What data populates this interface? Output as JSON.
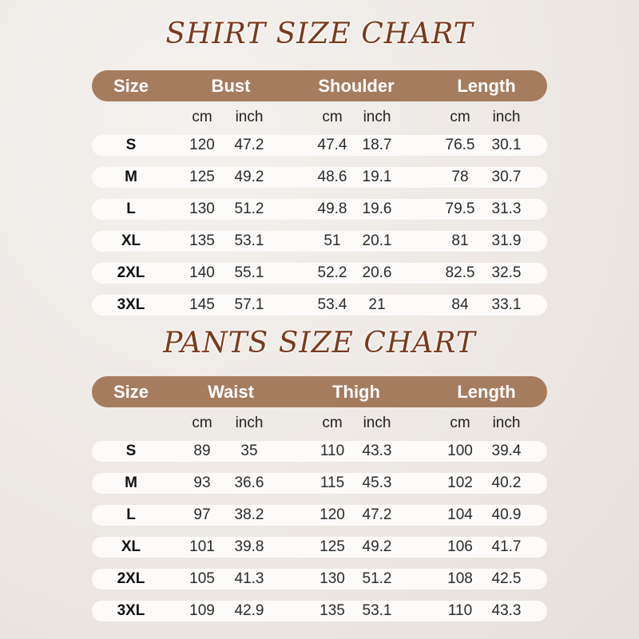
{
  "tables": [
    {
      "title": "SHIRT SIZE CHART",
      "headers": [
        "Size",
        "Bust",
        "Shoulder",
        "Length"
      ],
      "units": [
        "cm",
        "inch",
        "cm",
        "inch",
        "cm",
        "inch"
      ],
      "rows": [
        [
          "S",
          "120",
          "47.2",
          "47.4",
          "18.7",
          "76.5",
          "30.1"
        ],
        [
          "M",
          "125",
          "49.2",
          "48.6",
          "19.1",
          "78",
          "30.7"
        ],
        [
          "L",
          "130",
          "51.2",
          "49.8",
          "19.6",
          "79.5",
          "31.3"
        ],
        [
          "XL",
          "135",
          "53.1",
          "51",
          "20.1",
          "81",
          "31.9"
        ],
        [
          "2XL",
          "140",
          "55.1",
          "52.2",
          "20.6",
          "82.5",
          "32.5"
        ],
        [
          "3XL",
          "145",
          "57.1",
          "53.4",
          "21",
          "84",
          "33.1"
        ]
      ]
    },
    {
      "title": "PANTS SIZE CHART",
      "headers": [
        "Size",
        "Waist",
        "Thigh",
        "Length"
      ],
      "units": [
        "cm",
        "inch",
        "cm",
        "inch",
        "cm",
        "inch"
      ],
      "rows": [
        [
          "S",
          "89",
          "35",
          "110",
          "43.3",
          "100",
          "39.4"
        ],
        [
          "M",
          "93",
          "36.6",
          "115",
          "45.3",
          "102",
          "40.2"
        ],
        [
          "L",
          "97",
          "38.2",
          "120",
          "47.2",
          "104",
          "40.9"
        ],
        [
          "XL",
          "101",
          "39.8",
          "125",
          "49.2",
          "106",
          "41.7"
        ],
        [
          "2XL",
          "105",
          "41.3",
          "130",
          "51.2",
          "108",
          "42.5"
        ],
        [
          "3XL",
          "109",
          "42.9",
          "135",
          "53.1",
          "110",
          "43.3"
        ]
      ]
    }
  ],
  "colors": {
    "header": "#a67c5f",
    "title": "#7b3a1c",
    "row": "#fcfbfa"
  }
}
